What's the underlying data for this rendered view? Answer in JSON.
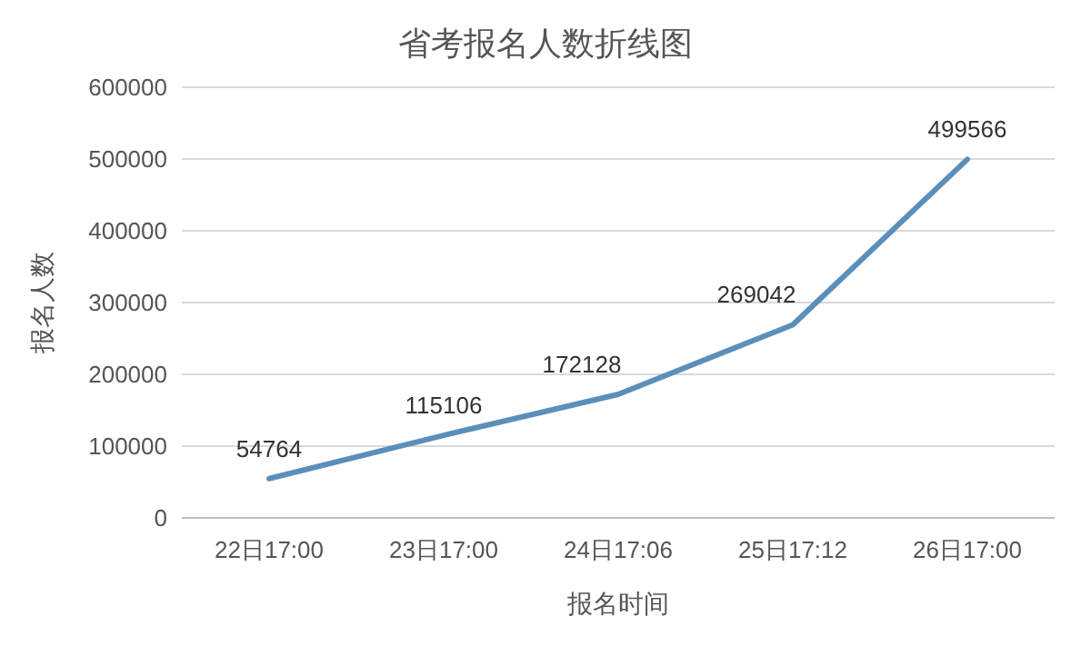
{
  "chart_data": {
    "type": "line",
    "title": "省考报名人数折线图",
    "xlabel": "报名时间",
    "ylabel": "报名人数",
    "categories": [
      "22日17:00",
      "23日17:00",
      "24日17:06",
      "25日17:12",
      "26日17:00"
    ],
    "series": [
      {
        "color": "#5b8fba",
        "values": [
          54764,
          115106,
          172128,
          269042,
          499566
        ]
      }
    ],
    "ylim": [
      0,
      600000
    ],
    "yticks": [
      0,
      100000,
      200000,
      300000,
      400000,
      500000,
      600000
    ],
    "grid": "y",
    "data_labels": true,
    "marker": "none",
    "line_style": "solid"
  }
}
